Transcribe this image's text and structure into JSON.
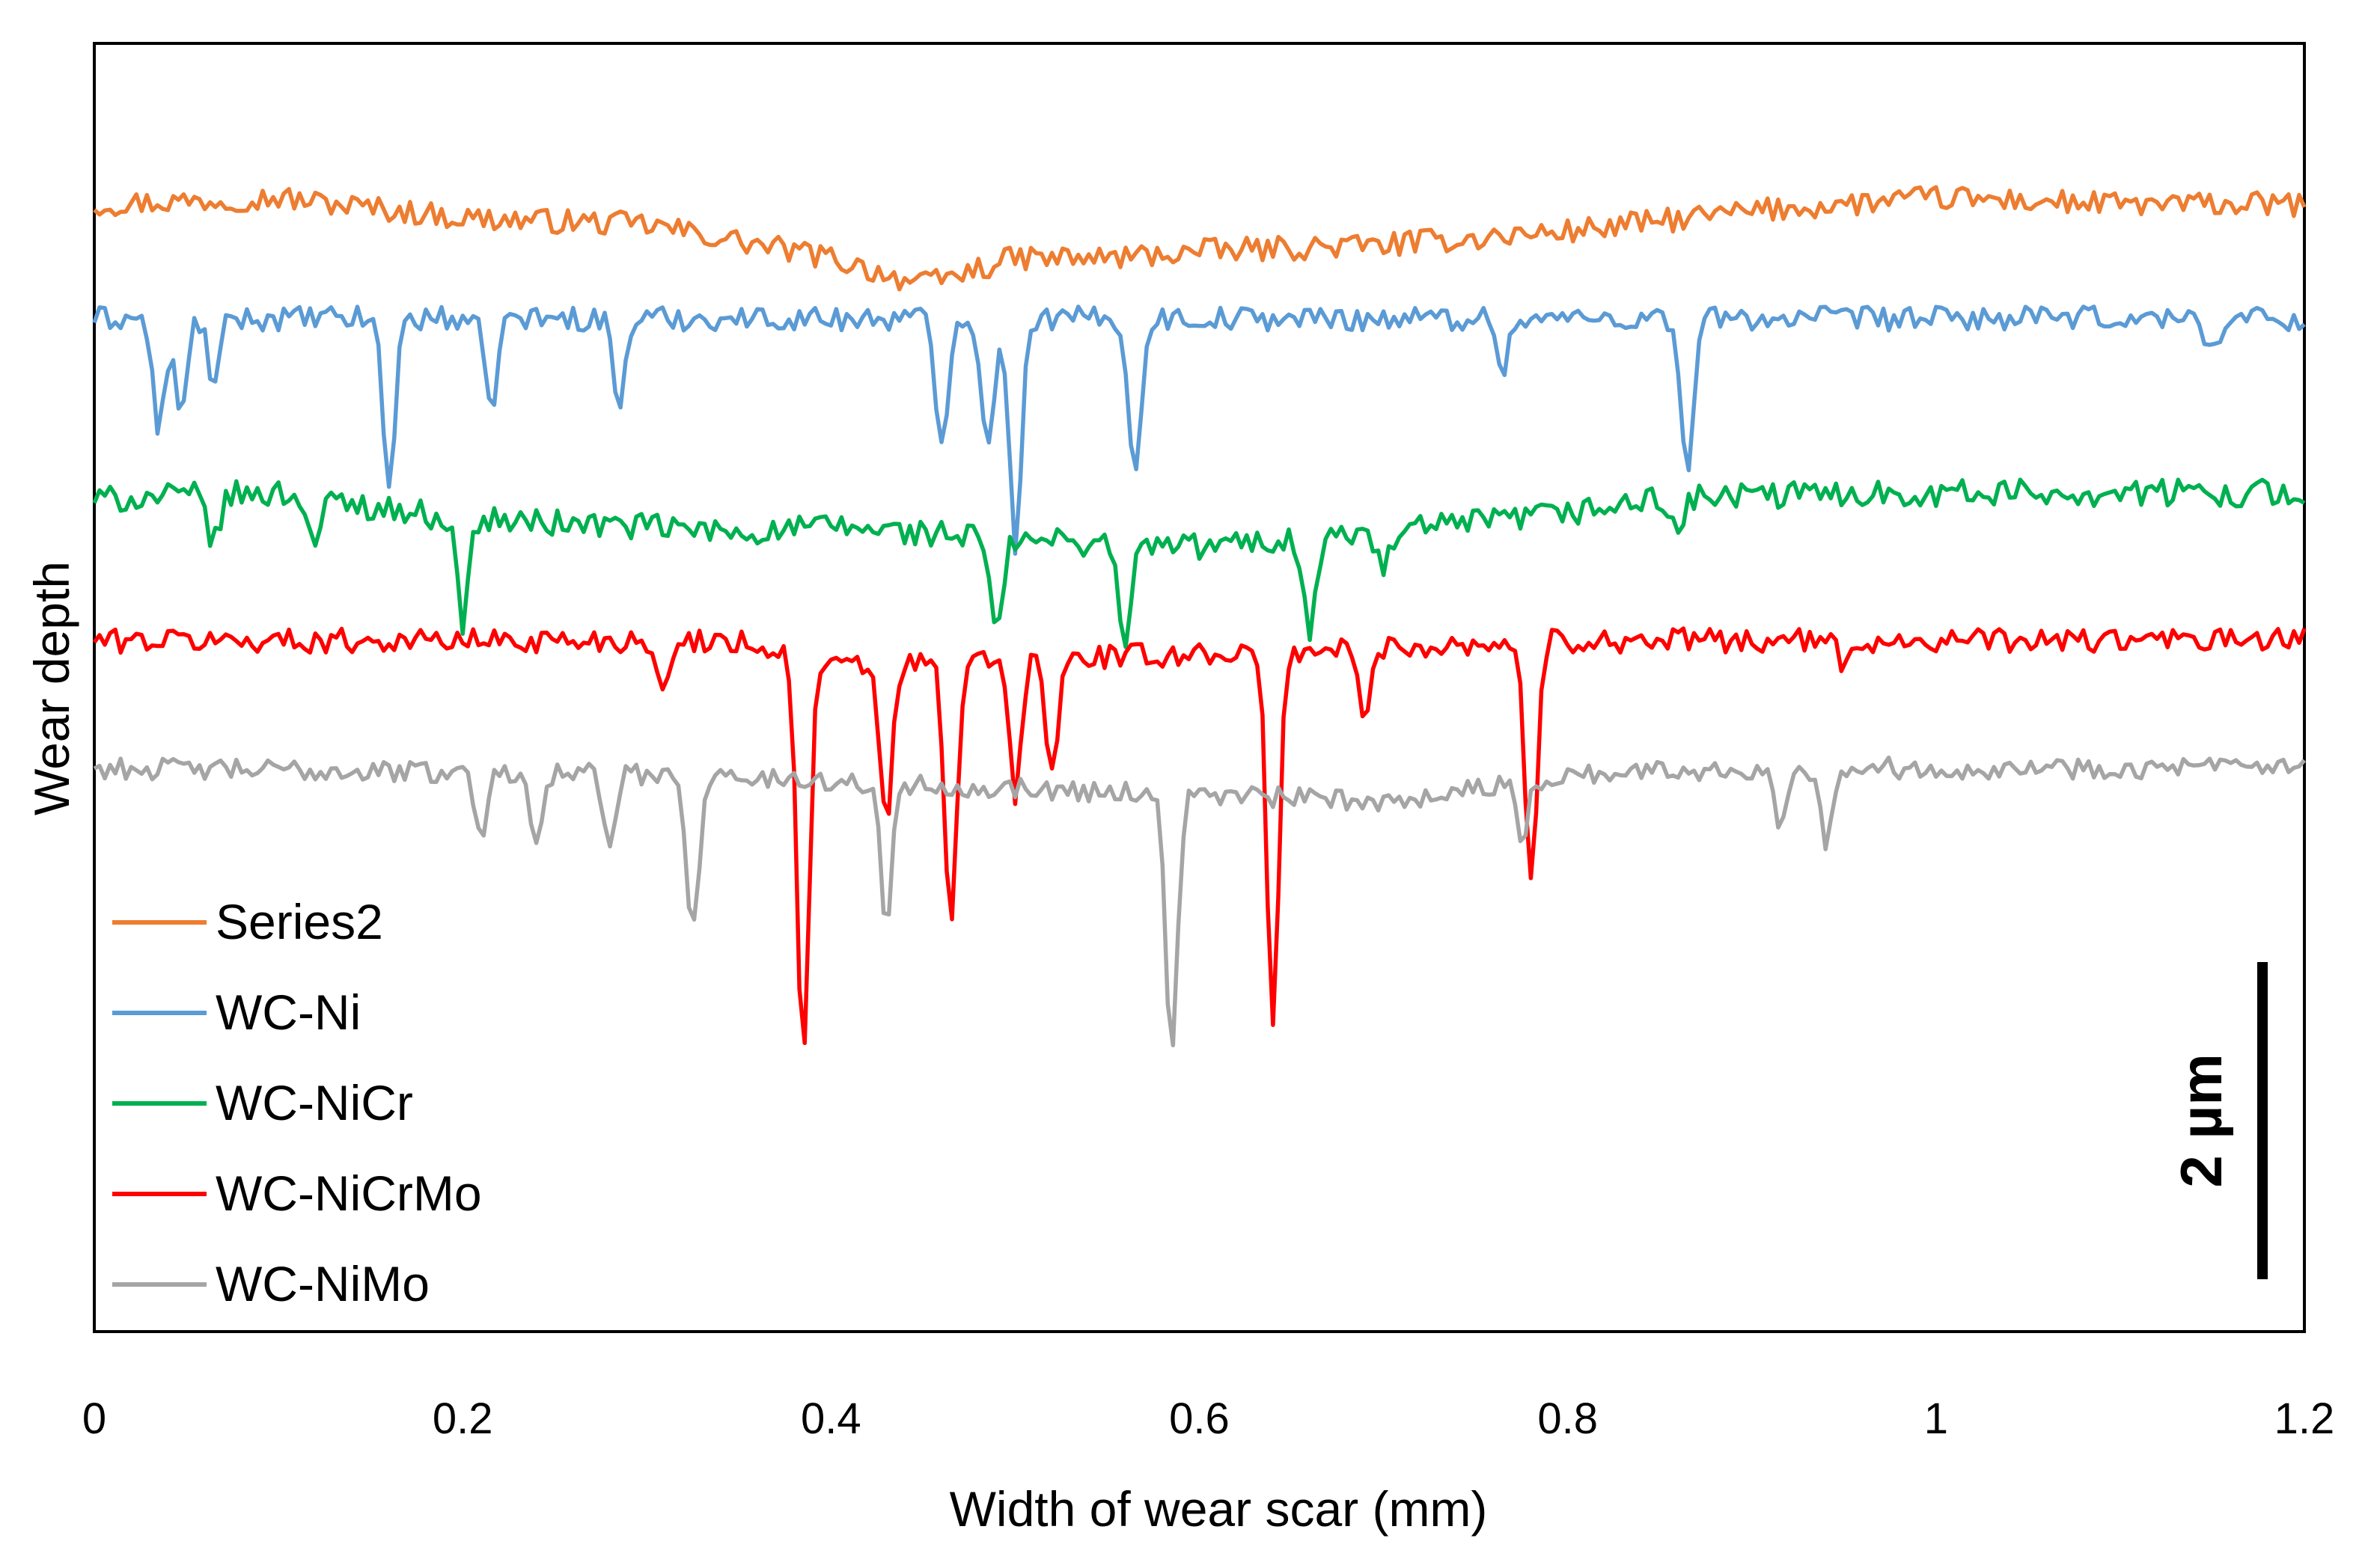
{
  "chart_data": {
    "type": "line",
    "title": "",
    "xlabel": "Width of wear scar (mm)",
    "ylabel": "Wear depth",
    "xlim": [
      0,
      1.2
    ],
    "x_ticks": [
      "0",
      "0.2",
      "0.4",
      "0.6",
      "0.8",
      "1",
      "1.2"
    ],
    "ylim": [
      -8.4,
      1.2
    ],
    "y_ticks_shown": false,
    "grid": false,
    "legend_position": "bottom-left",
    "scale_bar": {
      "label": "2 µm",
      "value_um": 2
    },
    "series": [
      {
        "name": "Series2",
        "color": "#ED7D31",
        "offset": 0,
        "amplitude": 0.09,
        "baseline": [
          [
            0,
            0.0
          ],
          [
            0.1,
            0.05
          ],
          [
            0.2,
            -0.1
          ],
          [
            0.3,
            -0.15
          ],
          [
            0.4,
            -0.4
          ],
          [
            0.45,
            -0.6
          ],
          [
            0.5,
            -0.4
          ],
          [
            0.55,
            -0.4
          ],
          [
            0.6,
            -0.35
          ],
          [
            0.7,
            -0.3
          ],
          [
            0.8,
            -0.2
          ],
          [
            0.9,
            -0.05
          ],
          [
            1.0,
            0.05
          ],
          [
            1.1,
            0.0
          ],
          [
            1.2,
            0.0
          ]
        ],
        "dips": []
      },
      {
        "name": "WC-Ni",
        "color": "#5B9BD5",
        "offset": -0.85,
        "amplitude": 0.09,
        "baseline": [
          [
            0,
            0.0
          ],
          [
            1.2,
            0.0
          ]
        ],
        "dips": [
          [
            0.035,
            0.85
          ],
          [
            0.047,
            0.75
          ],
          [
            0.065,
            0.5
          ],
          [
            0.16,
            1.25
          ],
          [
            0.215,
            0.7
          ],
          [
            0.285,
            0.65
          ],
          [
            0.46,
            0.95
          ],
          [
            0.485,
            1.0
          ],
          [
            0.5,
            1.7
          ],
          [
            0.565,
            1.2
          ],
          [
            0.765,
            0.35
          ],
          [
            0.865,
            1.2
          ],
          [
            1.15,
            0.25
          ]
        ]
      },
      {
        "name": "WC-NiCr",
        "color": "#00B050",
        "offset": -2.2,
        "amplitude": 0.1,
        "baseline": [
          [
            0,
            0.0
          ],
          [
            0.1,
            0.05
          ],
          [
            0.2,
            -0.15
          ],
          [
            0.3,
            -0.2
          ],
          [
            0.35,
            -0.25
          ],
          [
            0.4,
            -0.2
          ],
          [
            0.5,
            -0.3
          ],
          [
            0.6,
            -0.35
          ],
          [
            0.7,
            -0.25
          ],
          [
            0.8,
            -0.1
          ],
          [
            0.85,
            0.0
          ],
          [
            0.95,
            0.05
          ],
          [
            1.2,
            0.05
          ]
        ],
        "dips": [
          [
            0.065,
            0.35
          ],
          [
            0.12,
            0.35
          ],
          [
            0.2,
            0.75
          ],
          [
            0.49,
            0.75
          ],
          [
            0.56,
            0.75
          ],
          [
            0.66,
            0.7
          ],
          [
            0.7,
            0.3
          ],
          [
            0.86,
            0.25
          ]
        ]
      },
      {
        "name": "WC-NiCrMo",
        "color": "#FF0000",
        "offset": -3.25,
        "amplitude": 0.09,
        "baseline": [
          [
            0,
            0.0
          ],
          [
            0.35,
            0.0
          ],
          [
            0.4,
            -0.2
          ],
          [
            0.5,
            -0.15
          ],
          [
            0.6,
            -0.1
          ],
          [
            0.7,
            -0.05
          ],
          [
            0.8,
            0.0
          ],
          [
            1.2,
            0.0
          ]
        ],
        "dips": [
          [
            0.31,
            0.4
          ],
          [
            0.385,
            3.0
          ],
          [
            0.43,
            1.2
          ],
          [
            0.465,
            2.0
          ],
          [
            0.5,
            1.0
          ],
          [
            0.52,
            0.85
          ],
          [
            0.64,
            2.8
          ],
          [
            0.69,
            0.55
          ],
          [
            0.78,
            1.8
          ],
          [
            0.95,
            0.2
          ]
        ]
      },
      {
        "name": "WC-NiMo",
        "color": "#A5A5A5",
        "offset": -4.2,
        "amplitude": 0.08,
        "baseline": [
          [
            0,
            0.0
          ],
          [
            0.3,
            -0.05
          ],
          [
            0.5,
            -0.15
          ],
          [
            0.6,
            -0.2
          ],
          [
            0.7,
            -0.25
          ],
          [
            0.8,
            -0.05
          ],
          [
            0.9,
            0.0
          ],
          [
            1.2,
            0.0
          ]
        ],
        "dips": [
          [
            0.21,
            0.45
          ],
          [
            0.24,
            0.45
          ],
          [
            0.28,
            0.55
          ],
          [
            0.325,
            1.15
          ],
          [
            0.43,
            1.0
          ],
          [
            0.585,
            1.9
          ],
          [
            0.775,
            0.45
          ],
          [
            0.915,
            0.4
          ],
          [
            0.94,
            0.55
          ]
        ]
      }
    ]
  }
}
